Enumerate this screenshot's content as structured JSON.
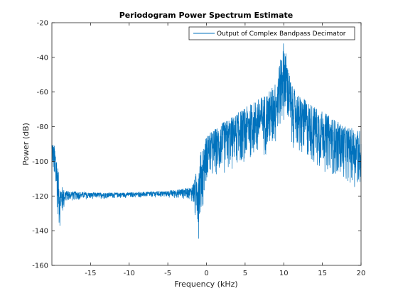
{
  "chart_data": {
    "type": "line",
    "title": "Periodogram Power Spectrum Estimate",
    "xlabel": "Frequency (kHz)",
    "ylabel": "Power (dB)",
    "xlim": [
      -20,
      20
    ],
    "ylim": [
      -160,
      -20
    ],
    "xticks": [
      -15,
      -10,
      -5,
      0,
      5,
      10,
      15,
      20
    ],
    "yticks": [
      -160,
      -140,
      -120,
      -100,
      -80,
      -60,
      -40,
      -20
    ],
    "grid": false,
    "legend_position": "top-right",
    "series": [
      {
        "name": "Output of Complex Bandpass Decimator",
        "color": "#0072bd",
        "style": "dense-noisy-line",
        "envelope": {
          "x": [
            -20,
            -19.5,
            -19,
            -18.5,
            -18,
            -15,
            -10,
            -5,
            -2,
            -1.5,
            -1,
            0,
            2,
            4,
            6,
            8,
            9,
            9.6,
            10,
            10.4,
            11,
            12,
            14,
            16,
            18,
            20
          ],
          "upper": [
            -88,
            -92,
            -112,
            -116,
            -117,
            -118,
            -118,
            -117,
            -115,
            -110,
            -98,
            -85,
            -78,
            -72,
            -66,
            -60,
            -54,
            -40,
            -30,
            -40,
            -56,
            -62,
            -68,
            -74,
            -80,
            -82
          ],
          "lower": [
            -100,
            -125,
            -140,
            -128,
            -123,
            -122,
            -121,
            -121,
            -122,
            -132,
            -145,
            -112,
            -108,
            -104,
            -100,
            -96,
            -90,
            -80,
            -78,
            -82,
            -92,
            -98,
            -103,
            -108,
            -112,
            -118
          ]
        }
      }
    ]
  }
}
